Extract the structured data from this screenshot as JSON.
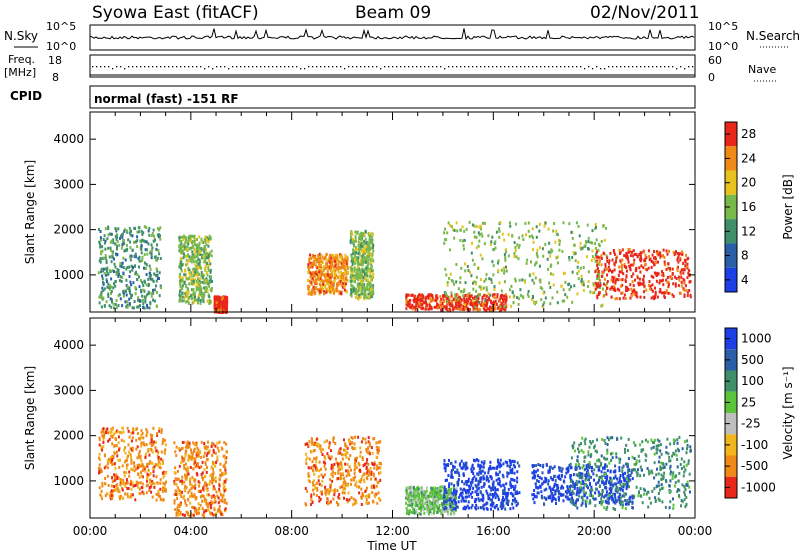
{
  "header": {
    "station": "Syowa East (fitACF)",
    "beam": "Beam 09",
    "date": "02/Nov/2011"
  },
  "left_labels": {
    "nsky": "N.Sky",
    "freq": "Freq.",
    "mhz": "[MHz]",
    "cpid": "CPID"
  },
  "right_labels": {
    "nsearch": "N.Search",
    "nave": "Nave"
  },
  "panel_ticks": {
    "nsky_hi": "10^5",
    "nsky_lo": "10^0",
    "freq_hi": "18",
    "freq_lo": "8",
    "nave_hi": "60",
    "nave_lo": "0"
  },
  "cpid_text": "normal (fast) -151 RF",
  "xaxis": {
    "label": "Time UT",
    "ticks": [
      "00:00",
      "04:00",
      "08:00",
      "12:00",
      "16:00",
      "20:00",
      "00:00"
    ],
    "range_hours": [
      0,
      24
    ]
  },
  "chart_data": [
    {
      "type": "heatmap",
      "name": "power",
      "ylabel": "Slant Range [km]",
      "yticks": [
        "1000",
        "2000",
        "3000",
        "4000"
      ],
      "ylim": [
        180,
        4600
      ],
      "colorbar": {
        "label": "Power [dB]",
        "ticks": [
          "4",
          "8",
          "12",
          "16",
          "20",
          "24",
          "28"
        ],
        "colors": [
          "#1c3fe6",
          "#2a5fa8",
          "#3f8f6a",
          "#79b84a",
          "#e8c21c",
          "#f08a17",
          "#e8261a"
        ]
      },
      "segments": [
        {
          "t0": 0.3,
          "t1": 2.8,
          "r0": 300,
          "r1": 2100,
          "c": 2
        },
        {
          "t0": 3.5,
          "t1": 4.8,
          "r0": 400,
          "r1": 1900,
          "c": 3
        },
        {
          "t0": 4.9,
          "t1": 5.4,
          "r0": 200,
          "r1": 550,
          "c": 6
        },
        {
          "t0": 8.6,
          "t1": 10.2,
          "r0": 600,
          "r1": 1500,
          "c": 5
        },
        {
          "t0": 10.3,
          "t1": 11.2,
          "r0": 500,
          "r1": 2000,
          "c": 3
        },
        {
          "t0": 12.5,
          "t1": 16.5,
          "r0": 250,
          "r1": 600,
          "c": 6
        },
        {
          "t0": 14.0,
          "t1": 20.5,
          "r0": 300,
          "r1": 2200,
          "c": 3
        },
        {
          "t0": 20.0,
          "t1": 23.8,
          "r0": 500,
          "r1": 1600,
          "c": 6
        }
      ]
    },
    {
      "type": "heatmap",
      "name": "velocity",
      "ylabel": "Slant Range [km]",
      "yticks": [
        "1000",
        "2000",
        "3000",
        "4000"
      ],
      "ylim": [
        180,
        4600
      ],
      "colorbar": {
        "label": "Velocity [m s⁻¹]",
        "ticks": [
          "1000",
          "500",
          "100",
          "25",
          "-25",
          "-100",
          "-500",
          "-1000"
        ],
        "colors": [
          "#1c3fe6",
          "#2a5fa8",
          "#3f8f6a",
          "#5cc43a",
          "#bfbfbf",
          "#f2b51c",
          "#f08a17",
          "#e8261a"
        ]
      },
      "segments": [
        {
          "t0": 0.3,
          "t1": 3.0,
          "r0": 600,
          "r1": 2200,
          "c": 6
        },
        {
          "t0": 3.3,
          "t1": 5.4,
          "r0": 250,
          "r1": 1900,
          "c": 6
        },
        {
          "t0": 8.5,
          "t1": 11.5,
          "r0": 500,
          "r1": 2000,
          "c": 6
        },
        {
          "t0": 12.5,
          "t1": 14.5,
          "r0": 300,
          "r1": 900,
          "c": 3
        },
        {
          "t0": 14.0,
          "t1": 17.0,
          "r0": 400,
          "r1": 1500,
          "c": 0
        },
        {
          "t0": 17.5,
          "t1": 21.5,
          "r0": 500,
          "r1": 1400,
          "c": 0
        },
        {
          "t0": 19.0,
          "t1": 23.8,
          "r0": 400,
          "r1": 2000,
          "c": 2
        }
      ]
    }
  ]
}
